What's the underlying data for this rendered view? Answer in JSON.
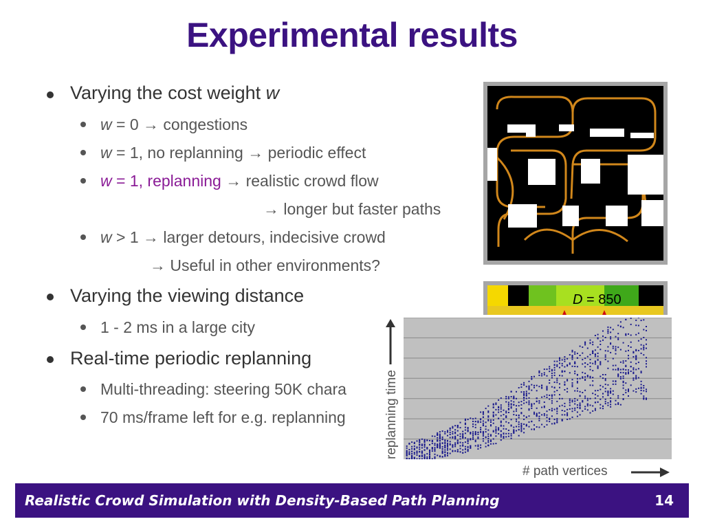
{
  "slide": {
    "title": "Experimental results",
    "footer_text": "Realistic Crowd Simulation with Density-Based Path Planning",
    "page_number": "14",
    "colors": {
      "title": "#3b1281",
      "footer_bg": "#3b1281",
      "highlight": "#8a1b96",
      "crowd": "#e8961e",
      "scatter": "#1a1a8c"
    }
  },
  "bullets": {
    "b1": {
      "text": "Varying the cost weight ",
      "var": "w"
    },
    "s1": {
      "var": "w",
      "rest": " = 0 ",
      "arrow": "→",
      "after": " congestions"
    },
    "s2": {
      "var": "w",
      "rest": " = 1, no replanning ",
      "arrow": "→",
      "after": " periodic effect"
    },
    "s3": {
      "var": "w",
      "rest": " = 1, replanning ",
      "arrow": "→",
      "after": " realistic crowd flow"
    },
    "s3b": {
      "arrow": "→",
      "after": " longer but faster paths"
    },
    "s4": {
      "var": "w",
      "rest": " > 1 ",
      "arrow": "→",
      "after": " larger detours, indecisive crowd"
    },
    "s4b": {
      "arrow": "→",
      "after": " Useful in other environments?"
    },
    "b2": "Varying the viewing distance",
    "s5": "1 - 2 ms in a large city",
    "b3": "Real-time periodic replanning",
    "s6": "Multi-threading: steering 50K chara",
    "s7": "70 ms/frame left for e.g. replanning"
  },
  "density_panel": {
    "label_var": "D",
    "label_rest": " = 850"
  },
  "chart_data": {
    "type": "scatter",
    "xlabel": "# path vertices",
    "ylabel": "replanning time",
    "grid": true,
    "series": [
      {
        "x": [
          1,
          10,
          20,
          30,
          40,
          50,
          60,
          70,
          80,
          90,
          100
        ],
        "y": [
          0.3,
          0.6,
          1.0,
          1.5,
          2.1,
          2.8,
          3.4,
          4.0,
          4.6,
          5.0,
          5.2
        ]
      }
    ],
    "note": "dense vertical point stacks; values estimated, axes carry no tick labels"
  }
}
